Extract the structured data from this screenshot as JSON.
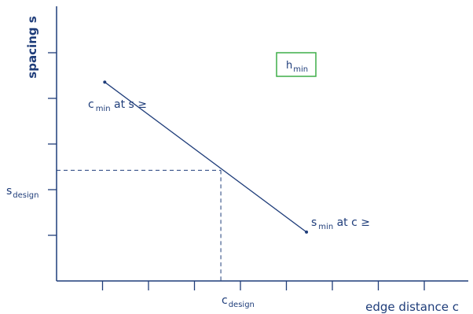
{
  "chart_data": {
    "type": "line",
    "xlabel": "edge distance  c",
    "ylabel": "spacing  s",
    "grid": false,
    "x_ticks": 8,
    "y_ticks": 5,
    "series": [
      {
        "points": [
          [
            0.117,
            0.724
          ],
          [
            0.607,
            0.178
          ]
        ]
      }
    ],
    "design_point": {
      "x": 0.399,
      "y": 0.403
    },
    "design_x_label": {
      "base": "c",
      "sub": "design"
    },
    "design_y_label": {
      "base": "s",
      "sub": "design"
    },
    "annotations": {
      "c_min": {
        "base": "c",
        "sub": "min",
        "rest": " at s ≥"
      },
      "s_min": {
        "base": "s",
        "sub": "min",
        "rest": " at c ≥"
      },
      "h_min": {
        "base": "h",
        "sub": "min"
      }
    },
    "colors": {
      "line": "#1f3d7a",
      "box": "#3fae49"
    }
  }
}
